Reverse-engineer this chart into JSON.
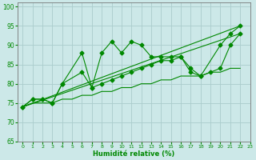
{
  "xlabel": "Humidité relative (%)",
  "xlim": [
    -0.5,
    23
  ],
  "ylim": [
    65,
    101
  ],
  "yticks": [
    65,
    70,
    75,
    80,
    85,
    90,
    95,
    100
  ],
  "xticks": [
    0,
    1,
    2,
    3,
    4,
    5,
    6,
    7,
    8,
    9,
    10,
    11,
    12,
    13,
    14,
    15,
    16,
    17,
    18,
    19,
    20,
    21,
    22,
    23
  ],
  "background_color": "#cce8e8",
  "grid_color": "#aacccc",
  "line_color": "#008800",
  "series": [
    {
      "x": [
        0,
        1,
        2,
        3,
        4,
        6,
        7,
        8,
        9,
        10,
        11,
        12,
        13,
        14,
        15,
        16,
        17,
        18,
        20,
        21,
        22
      ],
      "y": [
        74,
        76,
        76,
        75,
        80,
        88,
        79,
        88,
        91,
        88,
        91,
        90,
        87,
        87,
        87,
        87,
        84,
        82,
        90,
        93,
        95
      ],
      "marker": true
    },
    {
      "x": [
        0,
        22
      ],
      "y": [
        74,
        95
      ],
      "marker": false
    },
    {
      "x": [
        0,
        22
      ],
      "y": [
        74,
        93
      ],
      "marker": false
    },
    {
      "x": [
        0,
        1,
        2,
        3,
        4,
        6,
        7,
        8,
        9,
        10,
        11,
        12,
        13,
        14,
        15,
        16,
        17,
        18,
        19,
        20,
        21,
        22
      ],
      "y": [
        74,
        76,
        76,
        75,
        80,
        83,
        79,
        80,
        81,
        82,
        83,
        84,
        85,
        86,
        86,
        87,
        83,
        82,
        83,
        84,
        90,
        93
      ],
      "marker": true
    },
    {
      "x": [
        0,
        1,
        2,
        3,
        4,
        5,
        6,
        7,
        8,
        9,
        10,
        11,
        12,
        13,
        14,
        15,
        16,
        17,
        18,
        19,
        20,
        21,
        22
      ],
      "y": [
        74,
        75,
        75,
        75,
        76,
        76,
        77,
        77,
        78,
        78,
        79,
        79,
        80,
        80,
        81,
        81,
        82,
        82,
        82,
        83,
        83,
        84,
        84
      ],
      "marker": false
    }
  ]
}
